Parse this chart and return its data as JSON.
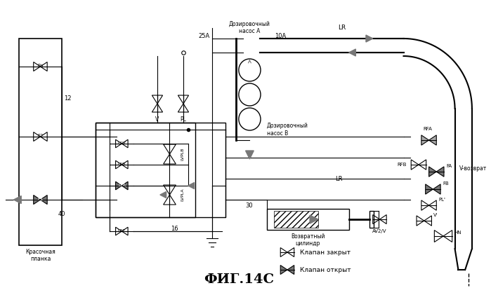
{
  "title": "ФИГ.14С",
  "bg_color": "#ffffff",
  "line_color": "#000000",
  "gray_fill": "#777777",
  "fig_width": 6.99,
  "fig_height": 4.11,
  "legend_valve_closed": "Клапан закрыт",
  "legend_valve_open": "Клапан открыт",
  "label_pump_a": "Дозировочный\nнасос A",
  "label_pump_b": "Дозировочный\nнасос B",
  "label_paint_bar": "Красочная\nпланка",
  "label_return_cyl": "Возвратный\nцилиндр",
  "label_v_return": "V-возврат"
}
